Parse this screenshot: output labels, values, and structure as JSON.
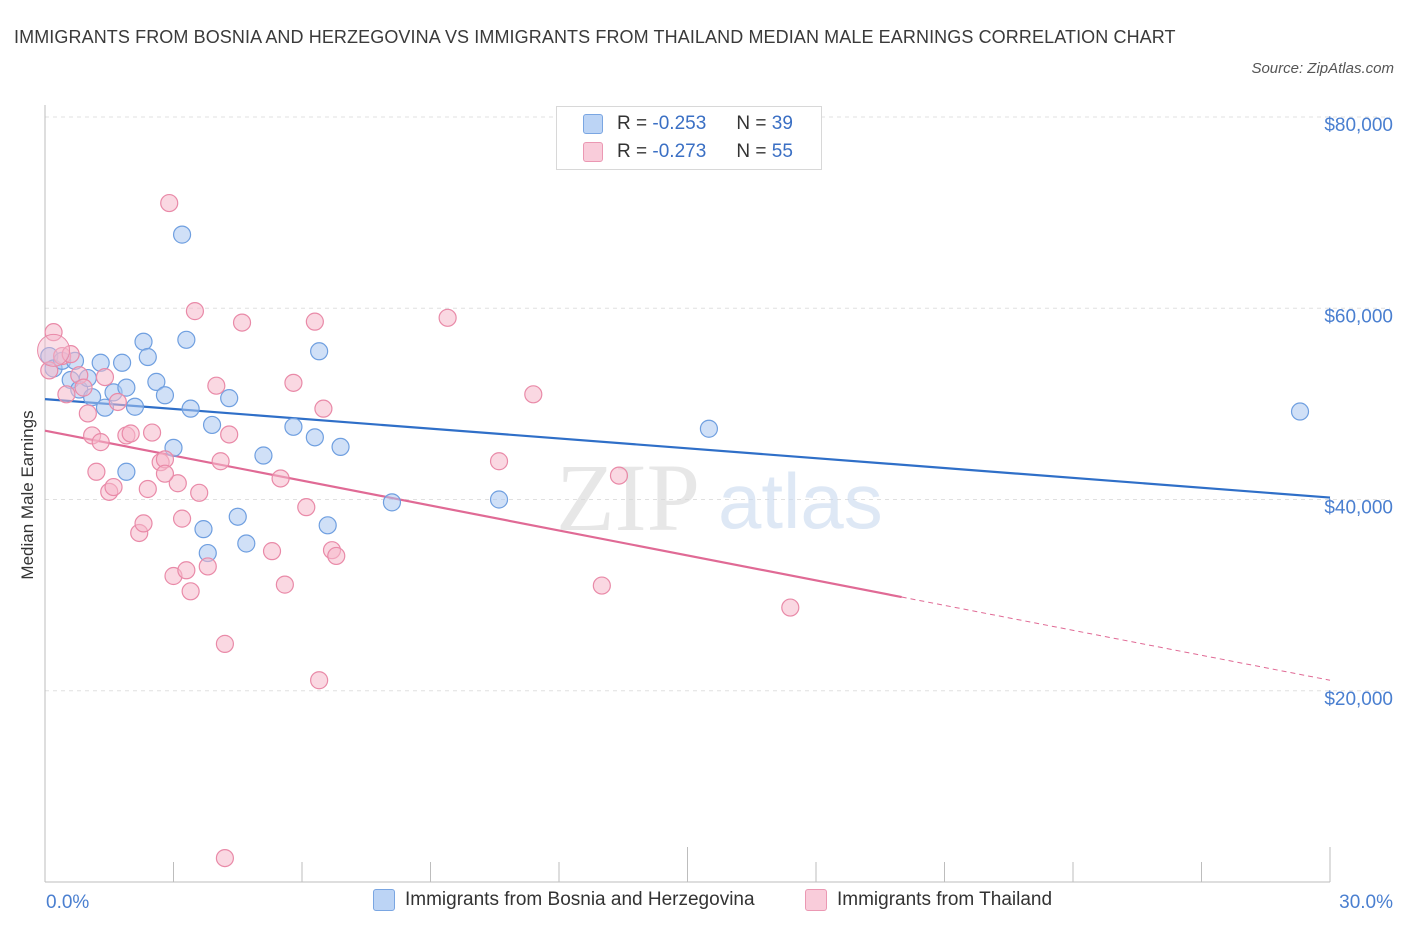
{
  "header": {
    "title": "IMMIGRANTS FROM BOSNIA AND HERZEGOVINA VS IMMIGRANTS FROM THAILAND MEDIAN MALE EARNINGS CORRELATION CHART",
    "source": "Source: ZipAtlas.com"
  },
  "legend": {
    "r_label": "R =",
    "n_label": "N =",
    "blue": {
      "r": "-0.253",
      "n": "39"
    },
    "pink": {
      "r": "-0.273",
      "n": "55"
    }
  },
  "watermark": {
    "zip": "ZIP",
    "atlas": "atlas"
  },
  "colors": {
    "blue_fill": "#a9c6f0",
    "blue_stroke": "#6f9fe0",
    "blue_line": "#2f6fc8",
    "pink_fill": "#f5b8cb",
    "pink_stroke": "#e98aa8",
    "pink_line": "#e06a95",
    "grid": "#e0e0e0",
    "axis_label": "#4a7fd0"
  },
  "chart_data": {
    "type": "scatter",
    "title": "IMMIGRANTS FROM BOSNIA AND HERZEGOVINA VS IMMIGRANTS FROM THAILAND MEDIAN MALE EARNINGS CORRELATION CHART",
    "xlabel": "",
    "ylabel": "Median Male Earnings",
    "xlim": [
      0,
      30
    ],
    "ylim": [
      0,
      80000
    ],
    "x_tick_labels": [
      "0.0%",
      "30.0%"
    ],
    "y_ticks": [
      20000,
      40000,
      60000,
      80000
    ],
    "y_tick_labels": [
      "$20,000",
      "$40,000",
      "$60,000",
      "$80,000"
    ],
    "grid": "horizontal dashed",
    "legend_position": "top-center",
    "series": [
      {
        "name": "Immigrants from Bosnia and Herzegovina",
        "color": "#a9c6f0",
        "points": [
          [
            0.1,
            55000
          ],
          [
            0.2,
            53700
          ],
          [
            0.4,
            54500
          ],
          [
            0.6,
            52500
          ],
          [
            0.7,
            54500
          ],
          [
            0.8,
            51500
          ],
          [
            1.0,
            52700
          ],
          [
            1.1,
            50700
          ],
          [
            1.3,
            54300
          ],
          [
            1.4,
            49600
          ],
          [
            1.6,
            51200
          ],
          [
            1.8,
            54300
          ],
          [
            1.9,
            51700
          ],
          [
            2.1,
            49700
          ],
          [
            2.3,
            56500
          ],
          [
            2.4,
            54900
          ],
          [
            2.6,
            52300
          ],
          [
            2.8,
            50900
          ],
          [
            3.0,
            45400
          ],
          [
            3.2,
            67700
          ],
          [
            3.3,
            56700
          ],
          [
            3.4,
            49500
          ],
          [
            3.7,
            36900
          ],
          [
            3.8,
            34400
          ],
          [
            3.9,
            47800
          ],
          [
            4.3,
            50600
          ],
          [
            4.5,
            38200
          ],
          [
            4.7,
            35400
          ],
          [
            5.1,
            44600
          ],
          [
            5.8,
            47600
          ],
          [
            6.3,
            46500
          ],
          [
            6.4,
            55500
          ],
          [
            6.6,
            37300
          ],
          [
            6.9,
            45500
          ],
          [
            8.1,
            39700
          ],
          [
            10.6,
            40000
          ],
          [
            1.9,
            42900
          ],
          [
            15.5,
            47400
          ],
          [
            29.3,
            49200
          ]
        ]
      },
      {
        "name": "Immigrants from Thailand",
        "color": "#f5b8cb",
        "points": [
          [
            0.1,
            53500
          ],
          [
            0.2,
            57500
          ],
          [
            0.4,
            55000
          ],
          [
            0.5,
            51000
          ],
          [
            0.6,
            55200
          ],
          [
            0.8,
            53000
          ],
          [
            0.9,
            51700
          ],
          [
            1.0,
            49000
          ],
          [
            1.1,
            46700
          ],
          [
            1.2,
            42900
          ],
          [
            1.4,
            52800
          ],
          [
            1.5,
            40800
          ],
          [
            1.6,
            41300
          ],
          [
            1.7,
            50200
          ],
          [
            1.9,
            46700
          ],
          [
            2.0,
            46900
          ],
          [
            2.2,
            36500
          ],
          [
            2.3,
            37500
          ],
          [
            2.4,
            41100
          ],
          [
            2.5,
            47000
          ],
          [
            2.7,
            43900
          ],
          [
            2.8,
            44200
          ],
          [
            2.9,
            71000
          ],
          [
            3.0,
            32000
          ],
          [
            3.1,
            41700
          ],
          [
            3.2,
            38000
          ],
          [
            3.3,
            32600
          ],
          [
            3.4,
            30400
          ],
          [
            3.5,
            59700
          ],
          [
            3.6,
            40700
          ],
          [
            3.8,
            33000
          ],
          [
            4.0,
            51900
          ],
          [
            4.1,
            44000
          ],
          [
            4.2,
            24900
          ],
          [
            4.3,
            46800
          ],
          [
            4.6,
            58500
          ],
          [
            4.2,
            2500
          ],
          [
            5.3,
            34600
          ],
          [
            5.5,
            42200
          ],
          [
            5.6,
            31100
          ],
          [
            5.8,
            52200
          ],
          [
            6.1,
            39200
          ],
          [
            6.3,
            58600
          ],
          [
            6.5,
            49500
          ],
          [
            6.7,
            34700
          ],
          [
            6.8,
            34100
          ],
          [
            6.4,
            21100
          ],
          [
            9.4,
            59000
          ],
          [
            10.6,
            44000
          ],
          [
            11.4,
            51000
          ],
          [
            13.0,
            31000
          ],
          [
            13.4,
            42500
          ],
          [
            17.4,
            28700
          ],
          [
            2.8,
            42700
          ],
          [
            1.3,
            46000
          ]
        ]
      }
    ],
    "trend_lines": [
      {
        "series": "Immigrants from Bosnia and Herzegovina",
        "x": [
          0,
          30
        ],
        "y": [
          50500,
          40200
        ],
        "style": "solid"
      },
      {
        "series": "Immigrants from Thailand",
        "x": [
          0,
          20
        ],
        "y": [
          47200,
          29800
        ],
        "style": "solid"
      },
      {
        "series": "Immigrants from Thailand",
        "x": [
          20,
          30
        ],
        "y": [
          29800,
          21100
        ],
        "style": "dashed"
      }
    ]
  }
}
